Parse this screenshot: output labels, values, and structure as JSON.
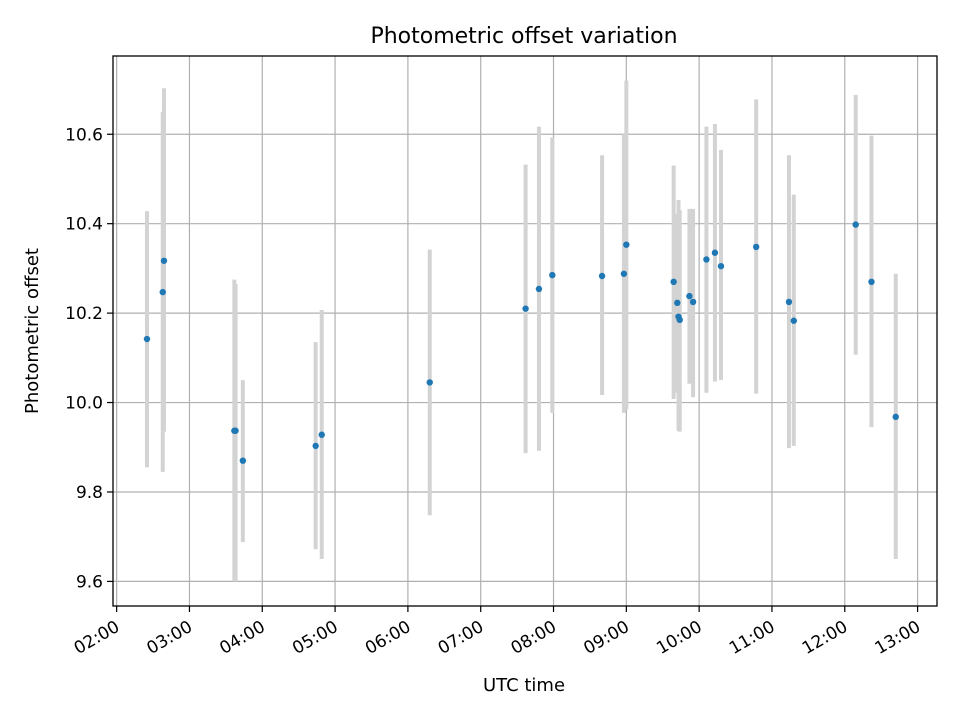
{
  "chart_data": {
    "type": "scatter",
    "title": "Photometric offset variation",
    "xlabel": "UTC time",
    "ylabel": "Photometric offset",
    "x_axis_type": "time",
    "xlim": [
      "01:57",
      "13:16"
    ],
    "ylim": [
      9.545,
      10.775
    ],
    "x_ticks": [
      "02:00",
      "03:00",
      "04:00",
      "05:00",
      "06:00",
      "07:00",
      "08:00",
      "09:00",
      "10:00",
      "11:00",
      "12:00",
      "13:00"
    ],
    "y_ticks": [
      9.6,
      9.8,
      10.0,
      10.2,
      10.4,
      10.6
    ],
    "y_tick_labels": [
      "9.6",
      "9.8",
      "10.0",
      "10.2",
      "10.4",
      "10.6"
    ],
    "grid": true,
    "legend": "none",
    "colors": {
      "marker": "#1f77b4",
      "errorbar": "#d3d3d3",
      "grid": "#b0b0b0",
      "axes": "#000000"
    },
    "points": [
      {
        "time": "02:25",
        "y": 10.142,
        "ylow": 9.855,
        "yhigh": 10.428
      },
      {
        "time": "02:38",
        "y": 10.247,
        "ylow": 9.845,
        "yhigh": 10.65
      },
      {
        "time": "02:39",
        "y": 10.317,
        "ylow": 9.935,
        "yhigh": 10.703
      },
      {
        "time": "03:37",
        "y": 9.937,
        "ylow": 9.6,
        "yhigh": 10.275
      },
      {
        "time": "03:38",
        "y": 9.937,
        "ylow": 9.6,
        "yhigh": 10.265
      },
      {
        "time": "03:44",
        "y": 9.87,
        "ylow": 9.688,
        "yhigh": 10.05
      },
      {
        "time": "04:44",
        "y": 9.903,
        "ylow": 9.672,
        "yhigh": 10.135
      },
      {
        "time": "04:49",
        "y": 9.928,
        "ylow": 9.65,
        "yhigh": 10.207
      },
      {
        "time": "06:18",
        "y": 10.045,
        "ylow": 9.748,
        "yhigh": 10.342
      },
      {
        "time": "07:37",
        "y": 10.21,
        "ylow": 9.887,
        "yhigh": 10.532
      },
      {
        "time": "07:48",
        "y": 10.254,
        "ylow": 9.892,
        "yhigh": 10.617
      },
      {
        "time": "07:59",
        "y": 10.285,
        "ylow": 9.977,
        "yhigh": 10.593
      },
      {
        "time": "08:40",
        "y": 10.283,
        "ylow": 10.017,
        "yhigh": 10.553
      },
      {
        "time": "08:58",
        "y": 10.288,
        "ylow": 9.977,
        "yhigh": 10.6
      },
      {
        "time": "09:00",
        "y": 10.353,
        "ylow": 9.985,
        "yhigh": 10.72
      },
      {
        "time": "09:39",
        "y": 10.27,
        "ylow": 10.008,
        "yhigh": 10.53
      },
      {
        "time": "09:42",
        "y": 10.223,
        "ylow": 10.022,
        "yhigh": 10.422
      },
      {
        "time": "09:43",
        "y": 10.192,
        "ylow": 9.937,
        "yhigh": 10.453
      },
      {
        "time": "09:44",
        "y": 10.185,
        "ylow": 9.935,
        "yhigh": 10.43
      },
      {
        "time": "09:52",
        "y": 10.238,
        "ylow": 10.042,
        "yhigh": 10.433
      },
      {
        "time": "09:55",
        "y": 10.225,
        "ylow": 10.012,
        "yhigh": 10.433
      },
      {
        "time": "10:06",
        "y": 10.32,
        "ylow": 10.022,
        "yhigh": 10.617
      },
      {
        "time": "10:13",
        "y": 10.335,
        "ylow": 10.047,
        "yhigh": 10.623
      },
      {
        "time": "10:18",
        "y": 10.305,
        "ylow": 10.05,
        "yhigh": 10.565
      },
      {
        "time": "10:47",
        "y": 10.348,
        "ylow": 10.02,
        "yhigh": 10.678
      },
      {
        "time": "11:14",
        "y": 10.225,
        "ylow": 9.898,
        "yhigh": 10.553
      },
      {
        "time": "11:18",
        "y": 10.183,
        "ylow": 9.903,
        "yhigh": 10.465
      },
      {
        "time": "12:09",
        "y": 10.398,
        "ylow": 10.107,
        "yhigh": 10.688
      },
      {
        "time": "12:22",
        "y": 10.27,
        "ylow": 9.945,
        "yhigh": 10.597
      },
      {
        "time": "12:42",
        "y": 9.968,
        "ylow": 9.65,
        "yhigh": 10.288
      }
    ]
  }
}
